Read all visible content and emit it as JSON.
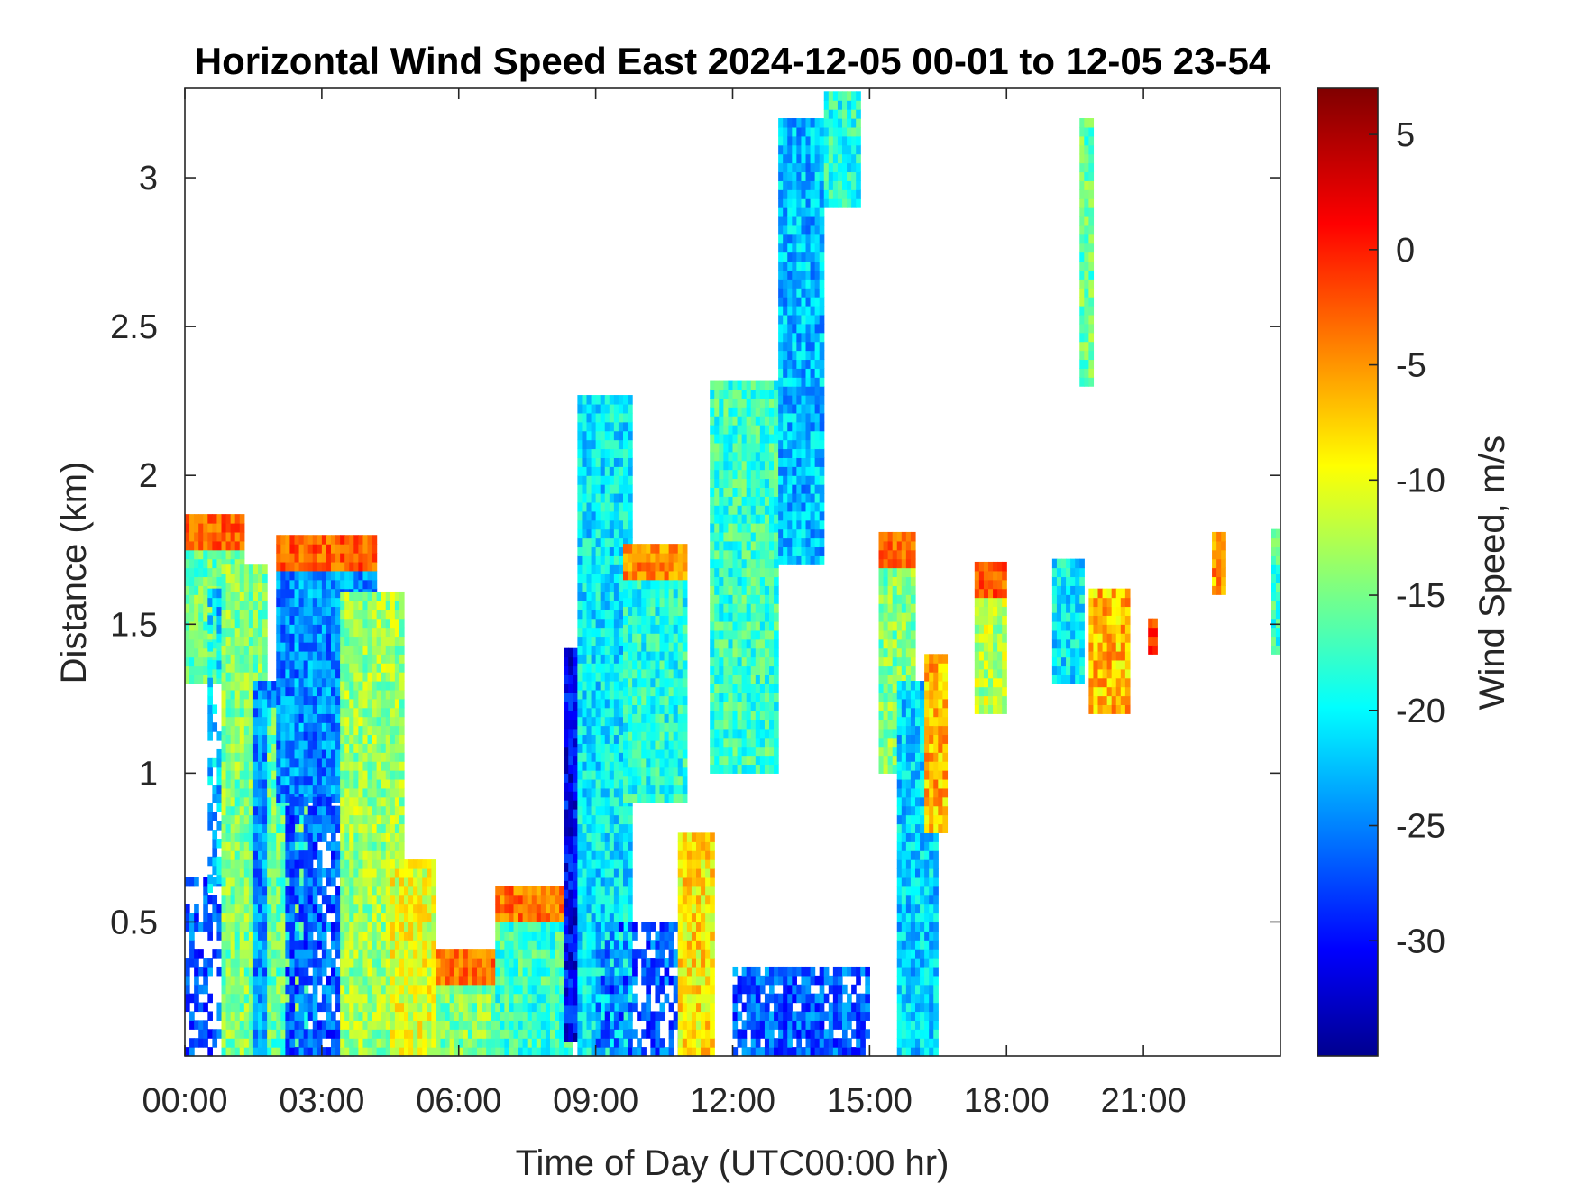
{
  "chart_data": {
    "type": "heatmap",
    "title": "Horizontal Wind Speed East 2024-12-05 00-01 to 12-05 23-54",
    "xlabel": "Time of Day (UTC00:00 hr)",
    "ylabel": "Distance (km)",
    "x_unit": "hours",
    "xlim": [
      0,
      24
    ],
    "ylim": [
      0.05,
      3.3
    ],
    "x_ticks": [
      0,
      3,
      6,
      9,
      12,
      15,
      18,
      21
    ],
    "x_tick_labels": [
      "00:00",
      "03:00",
      "06:00",
      "09:00",
      "12:00",
      "15:00",
      "18:00",
      "21:00"
    ],
    "y_ticks": [
      0.5,
      1,
      1.5,
      2,
      2.5,
      3
    ],
    "y_tick_labels": [
      "0.5",
      "1",
      "1.5",
      "2",
      "2.5",
      "3"
    ],
    "colorbar": {
      "label": "Wind Speed, m/s",
      "colormap": "jet",
      "clim": [
        -35,
        7
      ],
      "ticks": [
        5,
        0,
        -5,
        -10,
        -15,
        -20,
        -25,
        -30
      ],
      "tick_labels": [
        "5",
        "0",
        "-5",
        "-10",
        "-15",
        "-20",
        "-25",
        "-30"
      ]
    },
    "cell_size": {
      "dt_hours": 0.1,
      "dz_km": 0.03
    },
    "regions": [
      {
        "t": [
          0.0,
          1.3
        ],
        "z": [
          1.3,
          1.85
        ],
        "v": -15,
        "top": -2
      },
      {
        "t": [
          0.0,
          1.5
        ],
        "z": [
          0.05,
          0.65
        ],
        "v": -26,
        "sparse": 0.45
      },
      {
        "t": [
          0.5,
          1.7
        ],
        "z": [
          0.6,
          1.6
        ],
        "v": -22,
        "sparse": 0.4
      },
      {
        "t": [
          0.8,
          1.8
        ],
        "z": [
          0.05,
          1.7
        ],
        "v": -14
      },
      {
        "t": [
          1.5,
          2.2
        ],
        "z": [
          0.05,
          1.3
        ],
        "v": -24
      },
      {
        "t": [
          1.8,
          2.7
        ],
        "z": [
          0.05,
          1.2
        ],
        "v": -15
      },
      {
        "t": [
          2.0,
          4.2
        ],
        "z": [
          0.9,
          1.8
        ],
        "v": -24,
        "top": -2
      },
      {
        "t": [
          2.2,
          4.4
        ],
        "z": [
          0.05,
          0.9
        ],
        "v": -26,
        "sparse": 0.2
      },
      {
        "t": [
          3.4,
          4.8
        ],
        "z": [
          0.05,
          1.6
        ],
        "v": -13
      },
      {
        "t": [
          4.5,
          5.5
        ],
        "z": [
          0.05,
          0.7
        ],
        "v": -10
      },
      {
        "t": [
          5.5,
          7.0
        ],
        "z": [
          0.05,
          0.4
        ],
        "v": -14,
        "top": -3
      },
      {
        "t": [
          6.8,
          8.5
        ],
        "z": [
          0.05,
          0.6
        ],
        "v": -17,
        "top": -3
      },
      {
        "t": [
          8.3,
          9.0
        ],
        "z": [
          0.1,
          1.4
        ],
        "v": -30
      },
      {
        "t": [
          8.6,
          9.8
        ],
        "z": [
          0.05,
          2.25
        ],
        "v": -20
      },
      {
        "t": [
          9.6,
          11.0
        ],
        "z": [
          0.9,
          1.75
        ],
        "v": -18,
        "top": -4
      },
      {
        "t": [
          9.0,
          11.5
        ],
        "z": [
          0.05,
          0.5
        ],
        "v": -26,
        "sparse": 0.4
      },
      {
        "t": [
          10.8,
          11.6
        ],
        "z": [
          0.05,
          0.8
        ],
        "v": -8
      },
      {
        "t": [
          11.5,
          13.0
        ],
        "z": [
          1.0,
          2.3
        ],
        "v": -17
      },
      {
        "t": [
          12.0,
          15.0
        ],
        "z": [
          0.05,
          0.35
        ],
        "v": -26,
        "sparse": 0.15
      },
      {
        "t": [
          13.0,
          14.0
        ],
        "z": [
          1.7,
          3.2
        ],
        "v": -22
      },
      {
        "t": [
          14.0,
          14.8
        ],
        "z": [
          2.9,
          3.3
        ],
        "v": -18
      },
      {
        "t": [
          15.2,
          16.0
        ],
        "z": [
          1.0,
          1.8
        ],
        "v": -14,
        "top": -2
      },
      {
        "t": [
          15.6,
          16.5
        ],
        "z": [
          0.05,
          1.3
        ],
        "v": -21
      },
      {
        "t": [
          16.2,
          16.7
        ],
        "z": [
          0.8,
          1.4
        ],
        "v": -6
      },
      {
        "t": [
          17.3,
          18.0
        ],
        "z": [
          1.2,
          1.7
        ],
        "v": -12,
        "top": -2
      },
      {
        "t": [
          19.0,
          19.7
        ],
        "z": [
          1.3,
          1.7
        ],
        "v": -20
      },
      {
        "t": [
          19.6,
          19.9
        ],
        "z": [
          2.3,
          3.2
        ],
        "v": -15
      },
      {
        "t": [
          19.8,
          20.7
        ],
        "z": [
          1.2,
          1.6
        ],
        "v": -6
      },
      {
        "t": [
          21.1,
          21.3
        ],
        "z": [
          1.4,
          1.5
        ],
        "v": -2
      },
      {
        "t": [
          22.5,
          22.8
        ],
        "z": [
          1.6,
          1.8
        ],
        "v": -5
      },
      {
        "t": [
          23.8,
          24.0
        ],
        "z": [
          1.4,
          1.8
        ],
        "v": -17
      }
    ]
  }
}
